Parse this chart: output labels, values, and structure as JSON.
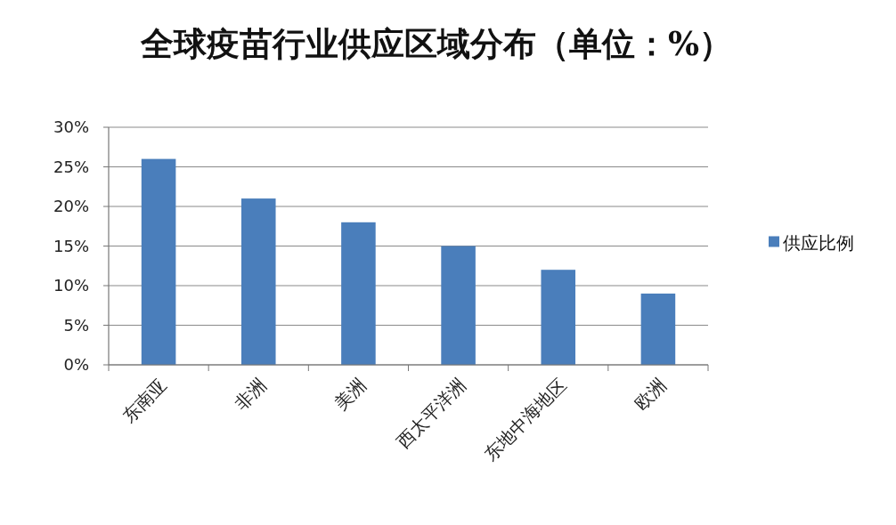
{
  "chart_data": {
    "type": "bar",
    "title": "全球疫苗行业供应区域分布（单位：%）",
    "categories": [
      "东南亚",
      "非洲",
      "美洲",
      "西太平洋洲",
      "东地中海地区",
      "欧洲"
    ],
    "series": [
      {
        "name": "供应比例",
        "color": "#4a7ebb",
        "values": [
          26,
          21,
          18,
          15,
          12,
          9
        ]
      }
    ],
    "ylim": [
      0,
      30
    ],
    "yticks": [
      {
        "value": 0,
        "label": "0%"
      },
      {
        "value": 5,
        "label": "5%"
      },
      {
        "value": 10,
        "label": "10%"
      },
      {
        "value": 15,
        "label": "15%"
      },
      {
        "value": 20,
        "label": "20%"
      },
      {
        "value": 25,
        "label": "25%"
      },
      {
        "value": 30,
        "label": "30%"
      }
    ],
    "grid": true,
    "legend": "right"
  }
}
